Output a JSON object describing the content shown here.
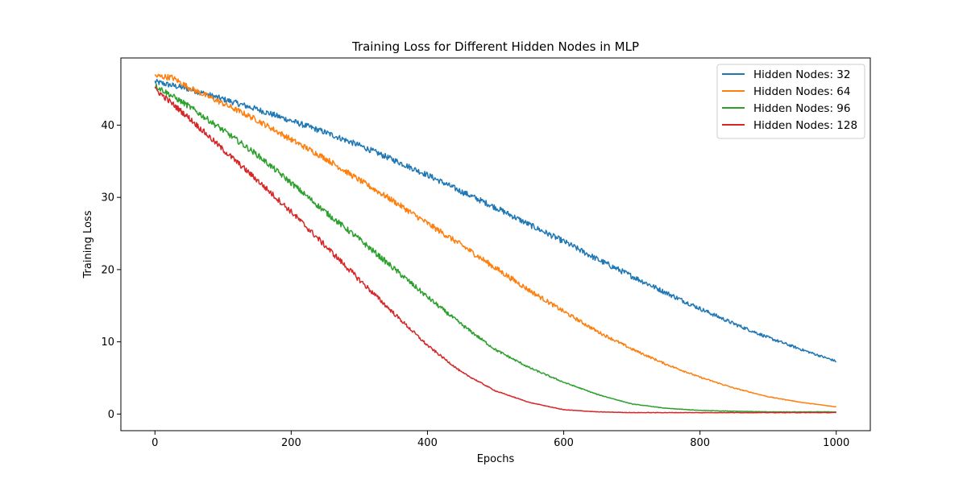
{
  "chart_data": {
    "type": "line",
    "title": "Training Loss for Different Hidden Nodes in MLP",
    "xlabel": "Epochs",
    "ylabel": "Training Loss",
    "xlim": [
      -50,
      1050
    ],
    "ylim": [
      -2.3,
      49.3
    ],
    "xticks": [
      0,
      200,
      400,
      600,
      800,
      1000
    ],
    "yticks": [
      0,
      10,
      20,
      30,
      40
    ],
    "grid": false,
    "legend_position": "top-right",
    "series": [
      {
        "name": "Hidden Nodes: 32",
        "color": "#1f77b4",
        "noise": 0.4,
        "x": [
          0,
          50,
          100,
          150,
          200,
          250,
          300,
          350,
          400,
          450,
          500,
          550,
          600,
          650,
          700,
          750,
          800,
          850,
          900,
          950,
          1000
        ],
        "y": [
          46.0,
          45.0,
          43.6,
          42.2,
          40.6,
          39.0,
          37.2,
          35.2,
          33.1,
          30.8,
          28.6,
          26.2,
          23.9,
          21.4,
          19.1,
          16.8,
          14.6,
          12.5,
          10.6,
          8.9,
          7.3
        ]
      },
      {
        "name": "Hidden Nodes: 64",
        "color": "#ff7f0e",
        "noise": 0.4,
        "x": [
          0,
          25,
          50,
          100,
          150,
          200,
          250,
          300,
          350,
          400,
          450,
          500,
          550,
          600,
          650,
          700,
          750,
          800,
          850,
          900,
          950,
          1000
        ],
        "y": [
          46.8,
          46.6,
          45.2,
          43.0,
          40.7,
          38.0,
          35.4,
          32.4,
          29.5,
          26.4,
          23.4,
          20.2,
          17.1,
          14.2,
          11.4,
          9.0,
          6.9,
          5.1,
          3.6,
          2.4,
          1.6,
          1.0
        ]
      },
      {
        "name": "Hidden Nodes: 96",
        "color": "#2ca02c",
        "noise": 0.4,
        "x": [
          0,
          50,
          100,
          150,
          200,
          250,
          300,
          350,
          400,
          450,
          500,
          550,
          600,
          650,
          700,
          750,
          800,
          850,
          900,
          950,
          1000
        ],
        "y": [
          45.5,
          42.6,
          39.3,
          35.9,
          32.0,
          28.0,
          24.2,
          20.2,
          16.2,
          12.4,
          8.9,
          6.4,
          4.4,
          2.7,
          1.4,
          0.8,
          0.5,
          0.4,
          0.3,
          0.3,
          0.3
        ]
      },
      {
        "name": "Hidden Nodes: 128",
        "color": "#d62728",
        "noise": 0.4,
        "x": [
          0,
          50,
          100,
          150,
          200,
          250,
          300,
          350,
          400,
          450,
          500,
          550,
          600,
          650,
          700,
          750,
          800,
          850,
          900,
          950,
          1000
        ],
        "y": [
          45.0,
          41.0,
          36.6,
          32.4,
          28.0,
          23.3,
          18.6,
          14.0,
          9.5,
          5.8,
          3.2,
          1.6,
          0.6,
          0.3,
          0.2,
          0.2,
          0.2,
          0.2,
          0.2,
          0.2,
          0.2
        ]
      }
    ]
  }
}
